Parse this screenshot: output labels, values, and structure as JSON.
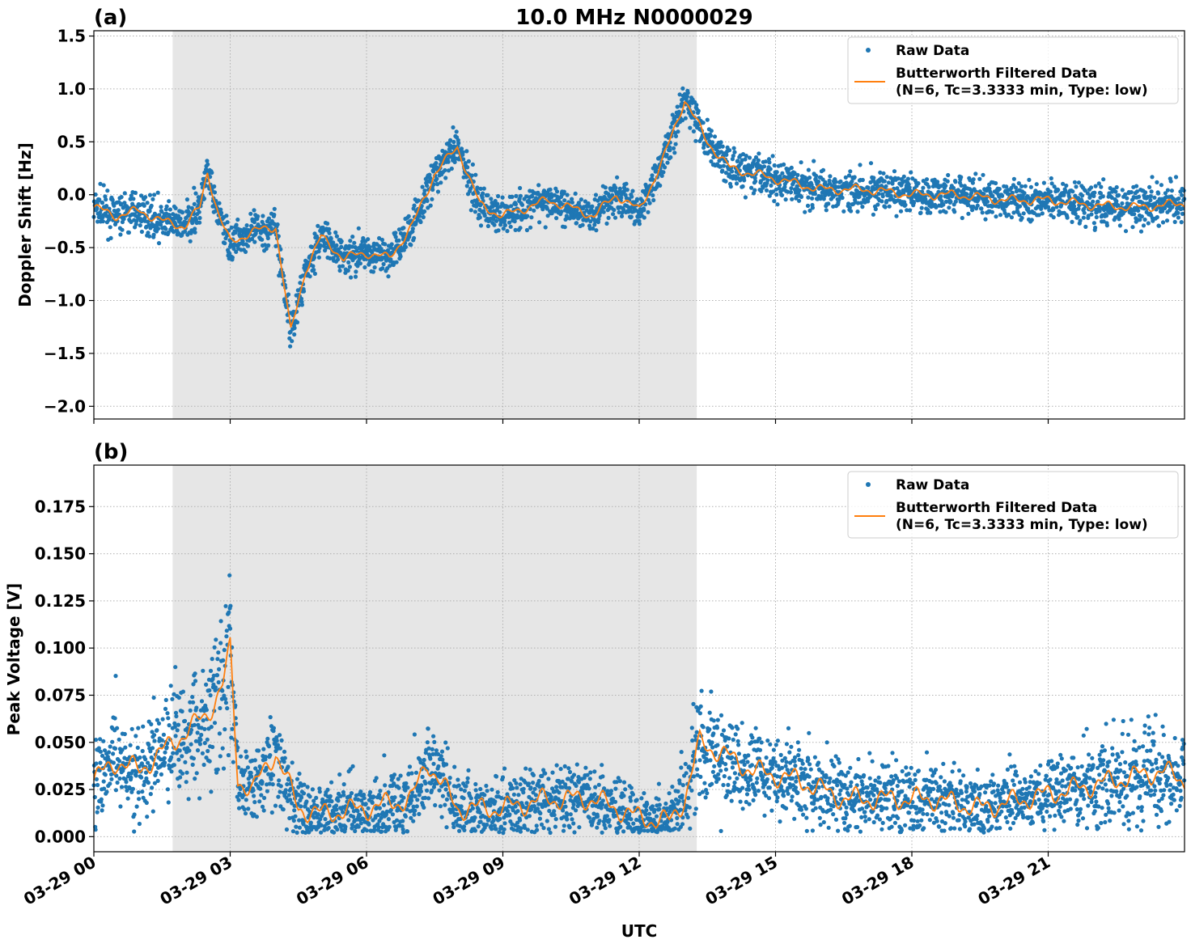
{
  "figure": {
    "title": "10.0 MHz N0000029",
    "xlabel": "UTC",
    "x_tick_labels": [
      "03-29 00",
      "03-29 03",
      "03-29 06",
      "03-29 09",
      "03-29 12",
      "03-29 15",
      "03-29 18",
      "03-29 21"
    ],
    "colors": {
      "raw": "#1f77b4",
      "filtered": "#ff7f0e",
      "shade": "#e6e6e6",
      "grid": "#b0b0b0"
    }
  },
  "legend": {
    "raw_label": "Raw Data",
    "filtered_label_line1": "Butterworth Filtered Data",
    "filtered_label_line2": "(N=6, Tc=3.3333 min, Type: low)"
  },
  "chart_data": [
    {
      "type": "scatter",
      "panel_label": "(a)",
      "title": "10.0 MHz N0000029",
      "xlabel": "",
      "ylabel": "Doppler Shift [Hz]",
      "xlim": [
        "2024-03-29 00:00",
        "2024-03-30 00:00"
      ],
      "ylim": [
        -2.12,
        1.55
      ],
      "y_ticks": [
        1.5,
        1.0,
        0.5,
        0.0,
        -0.5,
        -1.0,
        -1.5,
        -2.0
      ],
      "y_tick_labels": [
        "1.5",
        "1.0",
        "0.5",
        "0.0",
        "−0.5",
        "−1.0",
        "−1.5",
        "−2.0"
      ],
      "shaded_interval": [
        "2024-03-29 01:44",
        "2024-03-29 13:16"
      ],
      "grid": true,
      "legend_position": "top-right",
      "series": [
        {
          "name": "Butterworth Filtered Data",
          "x": [
            "2024-03-29 00:00",
            "2024-03-29 00:30",
            "2024-03-29 01:00",
            "2024-03-29 01:30",
            "2024-03-29 02:00",
            "2024-03-29 02:20",
            "2024-03-29 02:30",
            "2024-03-29 02:45",
            "2024-03-29 03:00",
            "2024-03-29 03:30",
            "2024-03-29 04:00",
            "2024-03-29 04:10",
            "2024-03-29 04:20",
            "2024-03-29 04:40",
            "2024-03-29 05:00",
            "2024-03-29 05:30",
            "2024-03-29 06:00",
            "2024-03-29 06:30",
            "2024-03-29 07:00",
            "2024-03-29 07:30",
            "2024-03-29 08:00",
            "2024-03-29 08:30",
            "2024-03-29 09:00",
            "2024-03-29 10:00",
            "2024-03-29 11:00",
            "2024-03-29 11:30",
            "2024-03-29 12:00",
            "2024-03-29 12:30",
            "2024-03-29 13:00",
            "2024-03-29 13:30",
            "2024-03-29 14:00",
            "2024-03-29 15:00",
            "2024-03-29 16:00",
            "2024-03-29 17:00",
            "2024-03-29 18:00",
            "2024-03-29 19:00",
            "2024-03-29 20:00",
            "2024-03-29 21:00",
            "2024-03-29 22:00",
            "2024-03-29 23:00",
            "2024-03-29 23:59"
          ],
          "y": [
            -0.12,
            -0.2,
            -0.15,
            -0.25,
            -0.3,
            -0.12,
            0.22,
            -0.2,
            -0.45,
            -0.35,
            -0.3,
            -0.8,
            -1.3,
            -0.7,
            -0.4,
            -0.6,
            -0.55,
            -0.6,
            -0.3,
            0.2,
            0.45,
            -0.1,
            -0.2,
            -0.05,
            -0.2,
            0.0,
            -0.15,
            0.3,
            0.9,
            0.5,
            0.25,
            0.15,
            0.05,
            0.05,
            0.0,
            0.0,
            -0.05,
            -0.05,
            -0.1,
            -0.12,
            -0.08
          ]
        }
      ]
    },
    {
      "type": "scatter",
      "panel_label": "(b)",
      "title": "",
      "xlabel": "UTC",
      "ylabel": "Peak Voltage [V]",
      "xlim": [
        "2024-03-29 00:00",
        "2024-03-30 00:00"
      ],
      "ylim": [
        -0.008,
        0.197
      ],
      "y_ticks": [
        0.175,
        0.15,
        0.125,
        0.1,
        0.075,
        0.05,
        0.025,
        0.0
      ],
      "y_tick_labels": [
        "0.175",
        "0.150",
        "0.125",
        "0.100",
        "0.075",
        "0.050",
        "0.025",
        "0.000"
      ],
      "shaded_interval": [
        "2024-03-29 01:44",
        "2024-03-29 13:16"
      ],
      "grid": true,
      "legend_position": "top-right",
      "series": [
        {
          "name": "Butterworth Filtered Data",
          "x": [
            "2024-03-29 00:00",
            "2024-03-29 00:30",
            "2024-03-29 01:00",
            "2024-03-29 01:30",
            "2024-03-29 02:00",
            "2024-03-29 02:30",
            "2024-03-29 02:50",
            "2024-03-29 03:00",
            "2024-03-29 03:10",
            "2024-03-29 03:30",
            "2024-03-29 04:00",
            "2024-03-29 04:30",
            "2024-03-29 05:00",
            "2024-03-29 06:00",
            "2024-03-29 07:00",
            "2024-03-29 07:20",
            "2024-03-29 08:00",
            "2024-03-29 09:00",
            "2024-03-29 10:00",
            "2024-03-29 11:00",
            "2024-03-29 12:00",
            "2024-03-29 12:40",
            "2024-03-29 13:00",
            "2024-03-29 13:20",
            "2024-03-29 13:45",
            "2024-03-29 14:30",
            "2024-03-29 15:30",
            "2024-03-29 16:30",
            "2024-03-29 17:30",
            "2024-03-29 18:30",
            "2024-03-29 19:30",
            "2024-03-29 20:30",
            "2024-03-29 21:30",
            "2024-03-29 22:30",
            "2024-03-29 23:30",
            "2024-03-29 23:59"
          ],
          "y": [
            0.03,
            0.04,
            0.035,
            0.045,
            0.055,
            0.065,
            0.08,
            0.1,
            0.03,
            0.025,
            0.045,
            0.015,
            0.012,
            0.015,
            0.02,
            0.04,
            0.015,
            0.015,
            0.02,
            0.02,
            0.01,
            0.008,
            0.02,
            0.05,
            0.045,
            0.035,
            0.03,
            0.02,
            0.02,
            0.02,
            0.015,
            0.02,
            0.025,
            0.03,
            0.035,
            0.03
          ]
        }
      ]
    }
  ]
}
